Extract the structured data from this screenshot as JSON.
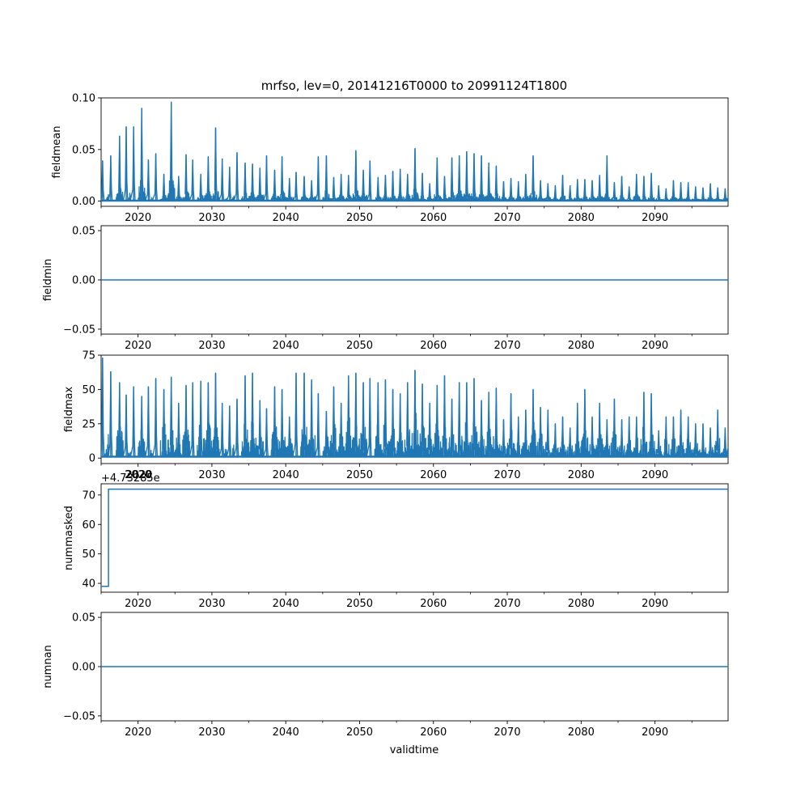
{
  "chart_data": {
    "title": "mrfso, lev=0, 20141216T0000 to 20991124T1800",
    "x_range": [
      2015.0,
      2099.9
    ],
    "x_ticks": [
      2020,
      2030,
      2040,
      2050,
      2060,
      2070,
      2080,
      2090
    ],
    "x_tick_labels": [
      "2020",
      "2030",
      "2040",
      "2050",
      "2060",
      "2070",
      "2080",
      "2090"
    ],
    "x_label": "validtime",
    "line_color": "#1f77b4",
    "panels": [
      {
        "type": "line",
        "ylabel": "fieldmean",
        "ylim": [
          -0.005,
          0.1
        ],
        "yticks": [
          0.0,
          0.05,
          0.1
        ],
        "ytick_labels": [
          "0.00",
          "0.05",
          "0.10"
        ],
        "series": {
          "name": "fieldmean",
          "baseline": 0.0005,
          "x": [
            2015.2,
            2016.3,
            2017.5,
            2018.4,
            2019.4,
            2020.5,
            2021.4,
            2022.4,
            2023.5,
            2024.5,
            2025.5,
            2026.5,
            2027.4,
            2028.5,
            2029.5,
            2030.5,
            2031.4,
            2032.4,
            2033.4,
            2034.5,
            2035.5,
            2036.5,
            2037.4,
            2038.5,
            2039.5,
            2040.5,
            2041.4,
            2042.5,
            2043.5,
            2044.4,
            2045.5,
            2046.5,
            2047.5,
            2048.5,
            2049.5,
            2050.5,
            2051.4,
            2052.5,
            2053.5,
            2054.5,
            2055.5,
            2056.5,
            2057.5,
            2058.5,
            2059.5,
            2060.5,
            2061.5,
            2062.5,
            2063.5,
            2064.5,
            2065.5,
            2066.5,
            2067.5,
            2068.5,
            2069.5,
            2070.5,
            2071.5,
            2072.5,
            2073.5,
            2074.5,
            2075.5,
            2076.5,
            2077.5,
            2078.5,
            2079.5,
            2080.5,
            2081.5,
            2082.5,
            2083.5,
            2084.5,
            2085.5,
            2086.5,
            2087.5,
            2088.5,
            2089.5,
            2090.5,
            2091.5,
            2092.5,
            2093.5,
            2094.5,
            2095.5,
            2096.5,
            2097.5,
            2098.5,
            2099.5
          ],
          "peaks": [
            0.039,
            0.044,
            0.063,
            0.072,
            0.072,
            0.09,
            0.04,
            0.046,
            0.026,
            0.096,
            0.024,
            0.045,
            0.04,
            0.026,
            0.043,
            0.071,
            0.041,
            0.033,
            0.047,
            0.037,
            0.036,
            0.032,
            0.044,
            0.03,
            0.043,
            0.022,
            0.028,
            0.024,
            0.02,
            0.043,
            0.044,
            0.023,
            0.026,
            0.025,
            0.049,
            0.03,
            0.039,
            0.023,
            0.025,
            0.029,
            0.031,
            0.026,
            0.051,
            0.027,
            0.017,
            0.042,
            0.024,
            0.042,
            0.044,
            0.048,
            0.046,
            0.044,
            0.037,
            0.034,
            0.019,
            0.022,
            0.019,
            0.026,
            0.044,
            0.02,
            0.017,
            0.015,
            0.025,
            0.015,
            0.021,
            0.021,
            0.02,
            0.025,
            0.044,
            0.018,
            0.024,
            0.014,
            0.026,
            0.024,
            0.027,
            0.015,
            0.012,
            0.02,
            0.018,
            0.018,
            0.014,
            0.013,
            0.017,
            0.013,
            0.012
          ]
        }
      },
      {
        "type": "line",
        "ylabel": "fieldmin",
        "ylim": [
          -0.055,
          0.055
        ],
        "yticks": [
          -0.05,
          0.0,
          0.05
        ],
        "ytick_labels": [
          "−0.05",
          "0.00",
          "0.05"
        ],
        "series": {
          "name": "fieldmin",
          "constant": 0.0
        }
      },
      {
        "type": "line",
        "ylabel": "fieldmax",
        "ylim": [
          -4,
          75
        ],
        "yticks": [
          0,
          25,
          50,
          75
        ],
        "ytick_labels": [
          "0",
          "25",
          "50",
          "75"
        ],
        "series": {
          "name": "fieldmax",
          "baseline": 1,
          "x": [
            2015.2,
            2016.3,
            2017.5,
            2018.4,
            2019.4,
            2020.5,
            2021.4,
            2022.4,
            2023.5,
            2024.5,
            2025.5,
            2026.5,
            2027.4,
            2028.5,
            2029.5,
            2030.5,
            2031.4,
            2032.4,
            2033.4,
            2034.5,
            2035.5,
            2036.5,
            2037.4,
            2038.5,
            2039.5,
            2040.5,
            2041.4,
            2042.5,
            2043.5,
            2044.4,
            2045.5,
            2046.5,
            2047.5,
            2048.5,
            2049.5,
            2050.5,
            2051.4,
            2052.5,
            2053.5,
            2054.5,
            2055.5,
            2056.5,
            2057.5,
            2058.5,
            2059.5,
            2060.5,
            2061.5,
            2062.5,
            2063.5,
            2064.5,
            2065.5,
            2066.5,
            2067.5,
            2068.5,
            2069.5,
            2070.5,
            2071.5,
            2072.5,
            2073.5,
            2074.5,
            2075.5,
            2076.5,
            2077.5,
            2078.5,
            2079.5,
            2080.5,
            2081.5,
            2082.5,
            2083.5,
            2084.5,
            2085.5,
            2086.5,
            2087.5,
            2088.5,
            2089.5,
            2090.5,
            2091.5,
            2092.5,
            2093.5,
            2094.5,
            2095.5,
            2096.5,
            2097.5,
            2098.5,
            2099.5
          ],
          "peaks": [
            73,
            63,
            55,
            46,
            52,
            45,
            52,
            58,
            50,
            59,
            40,
            53,
            55,
            56,
            55,
            62,
            40,
            38,
            43,
            60,
            62,
            42,
            36,
            52,
            50,
            30,
            62,
            62,
            57,
            47,
            34,
            52,
            40,
            60,
            62,
            55,
            58,
            55,
            57,
            50,
            47,
            55,
            64,
            54,
            40,
            53,
            60,
            43,
            55,
            55,
            58,
            42,
            48,
            51,
            28,
            47,
            30,
            35,
            50,
            37,
            35,
            25,
            30,
            22,
            40,
            50,
            30,
            40,
            28,
            43,
            28,
            30,
            30,
            48,
            47,
            20,
            30,
            30,
            35,
            30,
            25,
            25,
            22,
            35,
            22
          ]
        }
      },
      {
        "type": "line",
        "ylabel": "nummasked",
        "offset_text": "+4.73285e",
        "overlap_label": "2020",
        "ylim": [
          37,
          73.8
        ],
        "yticks": [
          40,
          50,
          60,
          70
        ],
        "ytick_labels": [
          "40",
          "50",
          "60",
          "70"
        ],
        "series": {
          "name": "nummasked",
          "steps": [
            {
              "x": 2015.0,
              "y": 39
            },
            {
              "x": 2016.0,
              "y": 39
            },
            {
              "x": 2016.0,
              "y": 72
            },
            {
              "x": 2099.9,
              "y": 72
            }
          ]
        }
      },
      {
        "type": "line",
        "ylabel": "numnan",
        "ylim": [
          -0.055,
          0.055
        ],
        "yticks": [
          -0.05,
          0.0,
          0.05
        ],
        "ytick_labels": [
          "−0.05",
          "0.00",
          "0.05"
        ],
        "series": {
          "name": "numnan",
          "constant": 0.0
        }
      }
    ]
  }
}
